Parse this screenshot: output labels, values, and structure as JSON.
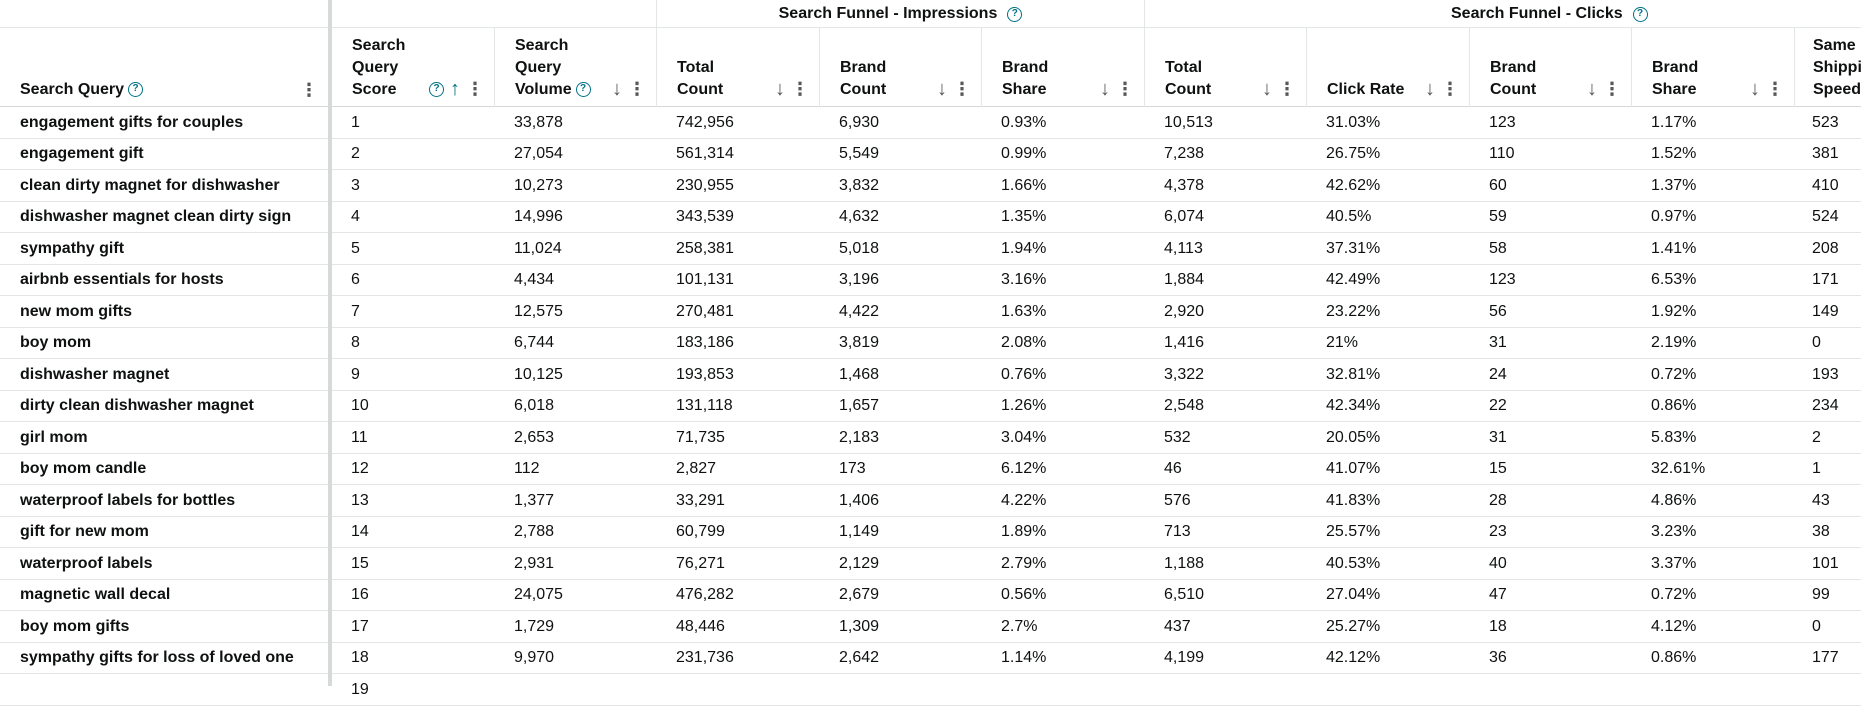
{
  "groups": {
    "impressions": "Search Funnel - Impressions",
    "clicks": "Search Funnel - Clicks"
  },
  "headers": {
    "query": "Search Query",
    "score_l1": "Search",
    "score_l2": "Query",
    "score_l3": "Score",
    "volume_l1": "Search",
    "volume_l2": "Query",
    "volume_l3": "Volume",
    "imp_total_l1": "Total",
    "imp_total_l2": "Count",
    "imp_brand_l1": "Brand",
    "imp_brand_l2": "Count",
    "imp_share_l1": "Brand",
    "imp_share_l2": "Share",
    "clk_total_l1": "Total",
    "clk_total_l2": "Count",
    "clk_rate": "Click Rate",
    "clk_brand_l1": "Brand",
    "clk_brand_l2": "Count",
    "clk_share_l1": "Brand",
    "clk_share_l2": "Share",
    "same_l1": "Same",
    "same_l2": "Shippi",
    "same_l3": "Speed"
  },
  "icons": {
    "help": "?",
    "sort_up": "↑",
    "sort_down": "↓",
    "menu": "⋮"
  },
  "rows": [
    [
      "engagement gifts for couples",
      "1",
      "33,878",
      "742,956",
      "6,930",
      "0.93%",
      "10,513",
      "31.03%",
      "123",
      "1.17%",
      "523"
    ],
    [
      "engagement gift",
      "2",
      "27,054",
      "561,314",
      "5,549",
      "0.99%",
      "7,238",
      "26.75%",
      "110",
      "1.52%",
      "381"
    ],
    [
      "clean dirty magnet for dishwasher",
      "3",
      "10,273",
      "230,955",
      "3,832",
      "1.66%",
      "4,378",
      "42.62%",
      "60",
      "1.37%",
      "410"
    ],
    [
      "dishwasher magnet clean dirty sign",
      "4",
      "14,996",
      "343,539",
      "4,632",
      "1.35%",
      "6,074",
      "40.5%",
      "59",
      "0.97%",
      "524"
    ],
    [
      "sympathy gift",
      "5",
      "11,024",
      "258,381",
      "5,018",
      "1.94%",
      "4,113",
      "37.31%",
      "58",
      "1.41%",
      "208"
    ],
    [
      "airbnb essentials for hosts",
      "6",
      "4,434",
      "101,131",
      "3,196",
      "3.16%",
      "1,884",
      "42.49%",
      "123",
      "6.53%",
      "171"
    ],
    [
      "new mom gifts",
      "7",
      "12,575",
      "270,481",
      "4,422",
      "1.63%",
      "2,920",
      "23.22%",
      "56",
      "1.92%",
      "149"
    ],
    [
      "boy mom",
      "8",
      "6,744",
      "183,186",
      "3,819",
      "2.08%",
      "1,416",
      "21%",
      "31",
      "2.19%",
      "0"
    ],
    [
      "dishwasher magnet",
      "9",
      "10,125",
      "193,853",
      "1,468",
      "0.76%",
      "3,322",
      "32.81%",
      "24",
      "0.72%",
      "193"
    ],
    [
      "dirty clean dishwasher magnet",
      "10",
      "6,018",
      "131,118",
      "1,657",
      "1.26%",
      "2,548",
      "42.34%",
      "22",
      "0.86%",
      "234"
    ],
    [
      "girl mom",
      "11",
      "2,653",
      "71,735",
      "2,183",
      "3.04%",
      "532",
      "20.05%",
      "31",
      "5.83%",
      "2"
    ],
    [
      "boy mom candle",
      "12",
      "112",
      "2,827",
      "173",
      "6.12%",
      "46",
      "41.07%",
      "15",
      "32.61%",
      "1"
    ],
    [
      "waterproof labels for bottles",
      "13",
      "1,377",
      "33,291",
      "1,406",
      "4.22%",
      "576",
      "41.83%",
      "28",
      "4.86%",
      "43"
    ],
    [
      "gift for new mom",
      "14",
      "2,788",
      "60,799",
      "1,149",
      "1.89%",
      "713",
      "25.57%",
      "23",
      "3.23%",
      "38"
    ],
    [
      "waterproof labels",
      "15",
      "2,931",
      "76,271",
      "2,129",
      "2.79%",
      "1,188",
      "40.53%",
      "40",
      "3.37%",
      "101"
    ],
    [
      "magnetic wall decal",
      "16",
      "24,075",
      "476,282",
      "2,679",
      "0.56%",
      "6,510",
      "27.04%",
      "47",
      "0.72%",
      "99"
    ],
    [
      "boy mom gifts",
      "17",
      "1,729",
      "48,446",
      "1,309",
      "2.7%",
      "437",
      "25.27%",
      "18",
      "4.12%",
      "0"
    ],
    [
      "sympathy gifts for loss of loved one",
      "18",
      "9,970",
      "231,736",
      "2,642",
      "1.14%",
      "4,199",
      "42.12%",
      "36",
      "0.86%",
      "177"
    ],
    [
      "",
      "19",
      "",
      "",
      "",
      "",
      "",
      "",
      "",
      "",
      ""
    ]
  ]
}
